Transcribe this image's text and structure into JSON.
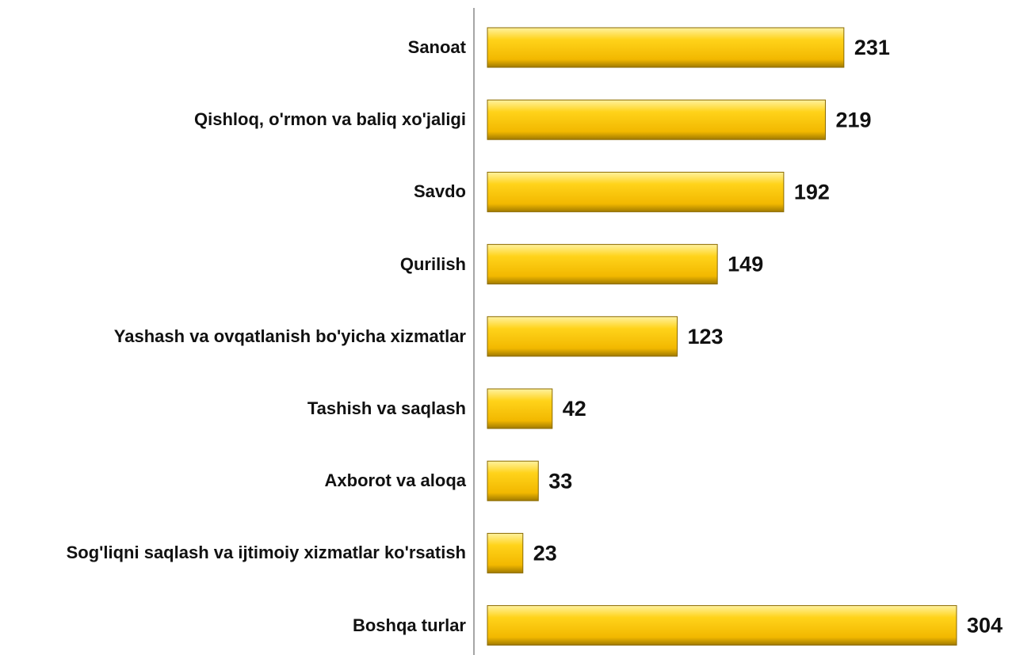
{
  "chart_data": {
    "type": "bar",
    "orientation": "horizontal",
    "categories": [
      "Sanoat",
      "Qishloq, o'rmon va baliq xo'jaligi",
      "Savdo",
      "Qurilish",
      "Yashash va ovqatlanish bo'yicha xizmatlar",
      "Tashish va saqlash",
      "Axborot va aloqa",
      "Sog'liqni saqlash va ijtimoiy xizmatlar ko'rsatish",
      "Boshqa turlar"
    ],
    "values": [
      231,
      219,
      192,
      149,
      123,
      42,
      33,
      23,
      304
    ],
    "color": "#ffcc00"
  }
}
